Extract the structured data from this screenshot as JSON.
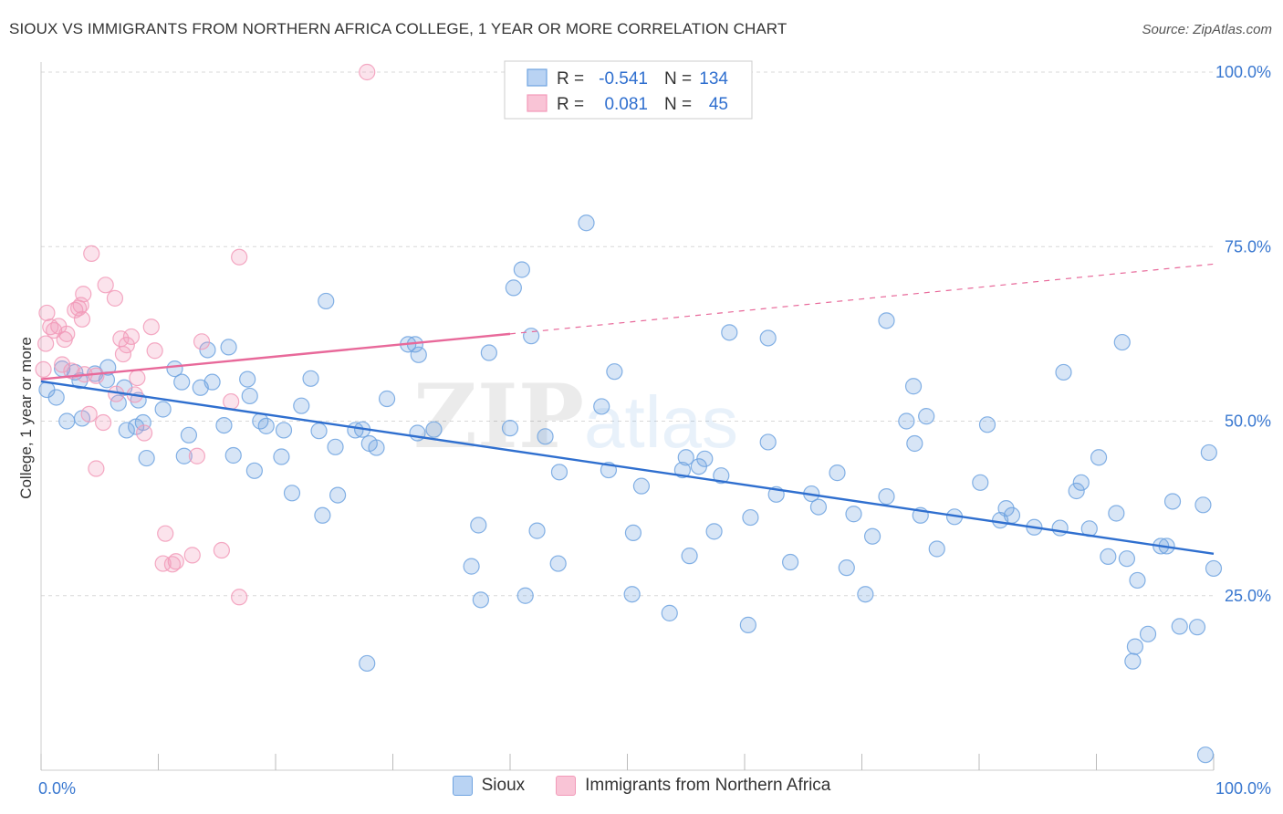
{
  "title": "SIOUX VS IMMIGRANTS FROM NORTHERN AFRICA COLLEGE, 1 YEAR OR MORE CORRELATION CHART",
  "source": "Source: ZipAtlas.com",
  "watermark": {
    "zip": "ZIP",
    "atlas": "atlas"
  },
  "chart_data": {
    "type": "scatter",
    "xlabel": "",
    "ylabel": "College, 1 year or more",
    "xlim": [
      0,
      100
    ],
    "ylim": [
      0,
      100
    ],
    "x_tick_labels": [
      "0.0%",
      "100.0%"
    ],
    "y_tick_labels": [
      {
        "value": 100,
        "label": "100.0%"
      },
      {
        "value": 75,
        "label": "75.0%"
      },
      {
        "value": 50,
        "label": "50.0%"
      },
      {
        "value": 25,
        "label": "25.0%"
      }
    ],
    "grid": true,
    "legend_position": "top-center",
    "stats": [
      {
        "r_label": "R =",
        "r_value": "-0.541",
        "n_label": "N =",
        "n_value": "134"
      },
      {
        "r_label": "R =",
        "r_value": "0.081",
        "n_label": "N =",
        "n_value": "45"
      }
    ],
    "series": [
      {
        "name": "Sioux",
        "color": "#6fa3e0",
        "line_color": "#2f6fcf",
        "trend": {
          "x0": 0,
          "y0": 55.7,
          "x1": 100,
          "y1": 31.0,
          "dashed_to": null
        },
        "points": [
          [
            0.5,
            54.5
          ],
          [
            1.3,
            53.4
          ],
          [
            2.2,
            50.0
          ],
          [
            1.8,
            57.5
          ],
          [
            2.9,
            57.0
          ],
          [
            3.5,
            50.4
          ],
          [
            4.6,
            56.8
          ],
          [
            5.7,
            57.7
          ],
          [
            6.6,
            52.6
          ],
          [
            7.3,
            48.7
          ],
          [
            8.1,
            49.2
          ],
          [
            7.1,
            54.8
          ],
          [
            8.7,
            49.8
          ],
          [
            8.3,
            53.0
          ],
          [
            9.0,
            44.7
          ],
          [
            10.4,
            51.7
          ],
          [
            11.4,
            57.5
          ],
          [
            12.0,
            55.6
          ],
          [
            12.2,
            45.0
          ],
          [
            13.6,
            54.8
          ],
          [
            14.6,
            55.6
          ],
          [
            16.0,
            60.6
          ],
          [
            15.6,
            49.4
          ],
          [
            16.4,
            45.1
          ],
          [
            17.6,
            56.0
          ],
          [
            18.2,
            42.9
          ],
          [
            17.8,
            53.6
          ],
          [
            18.7,
            50.0
          ],
          [
            19.2,
            49.3
          ],
          [
            20.5,
            44.9
          ],
          [
            20.7,
            48.7
          ],
          [
            21.4,
            39.7
          ],
          [
            22.2,
            52.2
          ],
          [
            23.0,
            56.1
          ],
          [
            23.7,
            48.6
          ],
          [
            24.3,
            67.2
          ],
          [
            25.3,
            39.4
          ],
          [
            25.1,
            46.3
          ],
          [
            26.8,
            48.7
          ],
          [
            27.4,
            48.8
          ],
          [
            28.0,
            46.8
          ],
          [
            29.5,
            53.2
          ],
          [
            28.6,
            46.2
          ],
          [
            32.1,
            48.3
          ],
          [
            31.3,
            61.0
          ],
          [
            31.9,
            61.0
          ],
          [
            32.2,
            59.5
          ],
          [
            33.5,
            48.8
          ],
          [
            37.3,
            35.1
          ],
          [
            36.7,
            29.2
          ],
          [
            37.5,
            24.4
          ],
          [
            38.2,
            59.8
          ],
          [
            40.3,
            69.1
          ],
          [
            40.0,
            49.0
          ],
          [
            41.0,
            71.7
          ],
          [
            41.3,
            25.0
          ],
          [
            41.8,
            62.2
          ],
          [
            42.3,
            34.3
          ],
          [
            43.0,
            47.8
          ],
          [
            44.1,
            29.6
          ],
          [
            44.2,
            42.7
          ],
          [
            46.5,
            78.4
          ],
          [
            47.8,
            52.1
          ],
          [
            48.4,
            43.0
          ],
          [
            48.9,
            57.1
          ],
          [
            50.4,
            25.2
          ],
          [
            50.5,
            34.0
          ],
          [
            51.2,
            40.7
          ],
          [
            53.6,
            22.5
          ],
          [
            54.7,
            43.0
          ],
          [
            55.0,
            44.8
          ],
          [
            55.3,
            30.7
          ],
          [
            56.1,
            43.5
          ],
          [
            56.6,
            44.6
          ],
          [
            57.4,
            34.2
          ],
          [
            58.0,
            42.2
          ],
          [
            58.7,
            62.7
          ],
          [
            60.3,
            20.8
          ],
          [
            60.5,
            36.2
          ],
          [
            62.0,
            61.9
          ],
          [
            62.0,
            47.0
          ],
          [
            62.7,
            39.5
          ],
          [
            63.9,
            29.8
          ],
          [
            65.7,
            39.6
          ],
          [
            66.3,
            37.7
          ],
          [
            67.9,
            42.6
          ],
          [
            68.7,
            29.0
          ],
          [
            69.3,
            36.7
          ],
          [
            70.3,
            25.2
          ],
          [
            70.9,
            33.5
          ],
          [
            72.1,
            39.2
          ],
          [
            72.1,
            64.4
          ],
          [
            73.8,
            50.0
          ],
          [
            74.5,
            46.8
          ],
          [
            74.4,
            55.0
          ],
          [
            75.0,
            36.5
          ],
          [
            75.5,
            50.7
          ],
          [
            76.4,
            31.7
          ],
          [
            77.9,
            36.3
          ],
          [
            80.1,
            41.2
          ],
          [
            80.7,
            49.5
          ],
          [
            81.8,
            35.8
          ],
          [
            82.3,
            37.5
          ],
          [
            82.8,
            36.5
          ],
          [
            84.7,
            34.8
          ],
          [
            86.9,
            34.7
          ],
          [
            87.2,
            57.0
          ],
          [
            88.3,
            40.0
          ],
          [
            88.7,
            41.2
          ],
          [
            89.4,
            34.6
          ],
          [
            90.2,
            44.8
          ],
          [
            91.0,
            30.6
          ],
          [
            91.7,
            36.8
          ],
          [
            92.2,
            61.3
          ],
          [
            92.6,
            30.3
          ],
          [
            93.1,
            15.6
          ],
          [
            93.3,
            17.7
          ],
          [
            93.5,
            27.2
          ],
          [
            94.4,
            19.5
          ],
          [
            95.5,
            32.1
          ],
          [
            96.0,
            32.1
          ],
          [
            96.5,
            38.5
          ],
          [
            97.1,
            20.6
          ],
          [
            98.6,
            20.5
          ],
          [
            99.1,
            38.0
          ],
          [
            99.6,
            45.5
          ],
          [
            100.0,
            28.9
          ],
          [
            99.3,
            2.2
          ],
          [
            24.0,
            36.5
          ],
          [
            27.8,
            15.3
          ],
          [
            5.6,
            55.9
          ],
          [
            14.2,
            60.2
          ],
          [
            3.3,
            55.8
          ],
          [
            12.6,
            48.0
          ]
        ]
      },
      {
        "name": "Immigrants from Northern Africa",
        "color": "#f29ab9",
        "line_color": "#e8699a",
        "trend": {
          "x0": 0,
          "y0": 56.0,
          "x1": 40,
          "y1": 62.5,
          "dashed_to": {
            "x": 100,
            "y": 72.5
          }
        },
        "points": [
          [
            0.4,
            61.1
          ],
          [
            0.5,
            65.5
          ],
          [
            0.8,
            63.5
          ],
          [
            1.1,
            63.0
          ],
          [
            1.5,
            63.6
          ],
          [
            1.8,
            58.1
          ],
          [
            2.0,
            61.7
          ],
          [
            2.2,
            62.5
          ],
          [
            2.6,
            57.2
          ],
          [
            2.9,
            65.9
          ],
          [
            3.2,
            66.2
          ],
          [
            3.5,
            64.6
          ],
          [
            3.4,
            66.6
          ],
          [
            3.7,
            56.7
          ],
          [
            3.6,
            68.2
          ],
          [
            4.1,
            51.0
          ],
          [
            4.3,
            74.0
          ],
          [
            4.7,
            56.5
          ],
          [
            5.3,
            49.8
          ],
          [
            4.7,
            43.2
          ],
          [
            5.5,
            69.5
          ],
          [
            6.3,
            67.6
          ],
          [
            6.4,
            53.9
          ],
          [
            6.8,
            61.8
          ],
          [
            7.0,
            59.6
          ],
          [
            7.3,
            60.9
          ],
          [
            7.7,
            62.1
          ],
          [
            8.0,
            53.8
          ],
          [
            8.2,
            56.2
          ],
          [
            8.8,
            48.3
          ],
          [
            9.4,
            63.5
          ],
          [
            9.7,
            60.1
          ],
          [
            10.4,
            29.6
          ],
          [
            10.6,
            33.9
          ],
          [
            11.2,
            29.5
          ],
          [
            11.5,
            29.9
          ],
          [
            12.9,
            30.8
          ],
          [
            13.3,
            45.0
          ],
          [
            13.7,
            61.4
          ],
          [
            15.4,
            31.5
          ],
          [
            16.2,
            52.8
          ],
          [
            16.9,
            24.8
          ],
          [
            16.9,
            73.5
          ],
          [
            27.8,
            100.0
          ],
          [
            0.2,
            57.4
          ]
        ]
      }
    ]
  }
}
